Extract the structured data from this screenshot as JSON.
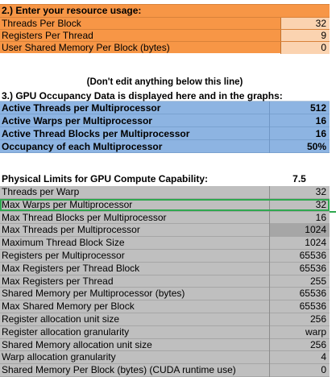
{
  "section2": {
    "title": "2.) Enter your resource usage:",
    "rows": [
      {
        "label": "Threads Per Block",
        "value": "32"
      },
      {
        "label": "Registers Per Thread",
        "value": "9"
      },
      {
        "label": "User Shared Memory Per Block (bytes)",
        "value": "0"
      }
    ]
  },
  "note": "(Don't edit anything below this line)",
  "section3": {
    "title": "3.) GPU Occupancy Data is displayed here and in the graphs:",
    "rows": [
      {
        "label": "Active Threads per Multiprocessor",
        "value": "512"
      },
      {
        "label": "Active Warps per Multiprocessor",
        "value": "16"
      },
      {
        "label": "Active Thread Blocks per Multiprocessor",
        "value": "16"
      },
      {
        "label": "Occupancy of each Multiprocessor",
        "value": "50%"
      }
    ]
  },
  "physical": {
    "title": "Physical Limits for GPU Compute Capability:",
    "capability": "7.5",
    "rows": [
      {
        "label": "Threads per Warp",
        "value": "32"
      },
      {
        "label": "Max Warps per Multiprocessor",
        "value": "32"
      },
      {
        "label": "Max Thread Blocks per Multiprocessor",
        "value": "16"
      },
      {
        "label": "Max Threads per Multiprocessor",
        "value": "1024"
      },
      {
        "label": "Maximum Thread Block Size",
        "value": "1024"
      },
      {
        "label": "Registers per Multiprocessor",
        "value": "65536"
      },
      {
        "label": "Max Registers per Thread Block",
        "value": "65536"
      },
      {
        "label": "Max Registers per Thread",
        "value": "255"
      },
      {
        "label": "Shared Memory per Multiprocessor (bytes)",
        "value": "65536"
      },
      {
        "label": "Max Shared Memory per Block",
        "value": "65536"
      },
      {
        "label": "Register allocation unit size",
        "value": "256"
      },
      {
        "label": "Register allocation granularity",
        "value": "warp"
      },
      {
        "label": "Shared Memory allocation unit size",
        "value": "256"
      },
      {
        "label": "Warp allocation granularity",
        "value": "4"
      },
      {
        "label": "Shared Memory Per Block (bytes) (CUDA runtime use)",
        "value": "0"
      }
    ]
  },
  "colors": {
    "input_bg": "#f79646",
    "occupancy_bg": "#8db4e2",
    "limits_bg": "#bfbfbf",
    "highlight": "#2fa84f"
  }
}
